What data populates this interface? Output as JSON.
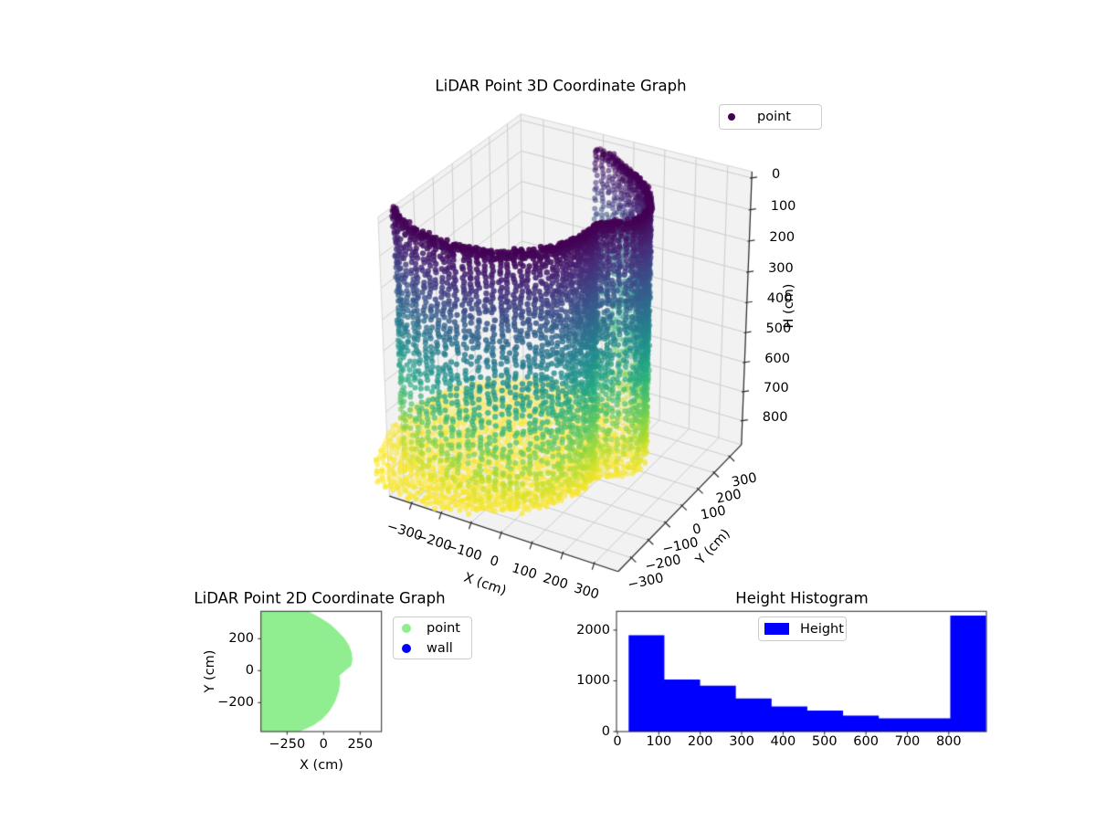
{
  "figure": {
    "background": "#ffffff"
  },
  "plot3d": {
    "title": "LiDAR Point 3D Coordinate Graph",
    "xlabel": "X (cm)",
    "ylabel": "Y (cm)",
    "zlabel": "H (cm)",
    "legend": [
      {
        "label": "point",
        "color": "#440154"
      }
    ]
  },
  "plot2d": {
    "title": "LiDAR Point 2D Coordinate Graph",
    "xlabel": "X (cm)",
    "ylabel": "Y (cm)",
    "legend": [
      {
        "label": "point",
        "color": "#90ee90"
      },
      {
        "label": "wall",
        "color": "#0000ff"
      }
    ]
  },
  "hist": {
    "title": "Height Histogram",
    "legend": [
      {
        "label": "Height",
        "color": "#0000ff"
      }
    ]
  },
  "chart_data": [
    {
      "type": "scatter3d",
      "title": "LiDAR Point 3D Coordinate Graph",
      "xlabel": "X (cm)",
      "ylabel": "Y (cm)",
      "zlabel": "H (cm)",
      "xlim": [
        -376,
        376
      ],
      "ylim": [
        -376,
        376
      ],
      "hlim_top": -20,
      "hlim_bottom": 884,
      "xticks": [
        -300,
        -200,
        -100,
        0,
        100,
        200,
        300
      ],
      "yticks": [
        -300,
        -200,
        -100,
        0,
        100,
        200,
        300
      ],
      "zticks": [
        0,
        100,
        200,
        300,
        400,
        500,
        600,
        700,
        800
      ],
      "legend": [
        {
          "label": "point",
          "color": "#440154"
        }
      ],
      "view": {
        "elev": 30,
        "azim": -60,
        "dist": 20,
        "zbox": 2.4
      },
      "colormap": "viridis",
      "cloud": {
        "scanner_origin": [
          0,
          0
        ],
        "wall_profile_deg_dist": [
          [
            -180,
            480
          ],
          [
            -150,
            480
          ],
          [
            -120,
            380
          ],
          [
            -95,
            300
          ],
          [
            -75,
            235
          ],
          [
            -55,
            175
          ],
          [
            -35,
            138
          ],
          [
            -16,
            112
          ],
          [
            0,
            148
          ],
          [
            9,
            191
          ],
          [
            20,
            210
          ],
          [
            32,
            223
          ],
          [
            44,
            236
          ],
          [
            56,
            248
          ],
          [
            68,
            265
          ],
          [
            82,
            293
          ],
          [
            92,
            326
          ],
          [
            105,
            385
          ],
          [
            125,
            440
          ],
          [
            150,
            470
          ],
          [
            180,
            480
          ]
        ],
        "floor_profile_deg_dist": [
          [
            -180,
            580
          ],
          [
            -140,
            575
          ],
          [
            -115,
            422
          ],
          [
            -102,
            350
          ],
          [
            -91,
            303
          ],
          [
            -80,
            254
          ],
          [
            -68,
            210
          ],
          [
            -52,
            167
          ],
          [
            -33,
            136
          ],
          [
            -16,
            112
          ],
          [
            0,
            148
          ],
          [
            9,
            191
          ],
          [
            19,
            210
          ],
          [
            31,
            223
          ],
          [
            43,
            236
          ],
          [
            55,
            248
          ],
          [
            68,
            265
          ],
          [
            81,
            293
          ],
          [
            92,
            326
          ],
          [
            105,
            385
          ],
          [
            125,
            480
          ],
          [
            150,
            560
          ],
          [
            180,
            580
          ]
        ],
        "wall_arc_deg": [
          -152,
          108
        ],
        "wall_h_range": [
          27,
          864
        ],
        "wall_h_step": 12.2,
        "wall_angle_step_deg": 3.2,
        "floor_h_range": [
          853,
          871
        ],
        "floor_grid_cm": 16.5,
        "rim_h_range": [
          27,
          55
        ]
      }
    },
    {
      "type": "scatter2d_filled",
      "title": "LiDAR Point 2D Coordinate Graph",
      "xlabel": "X (cm)",
      "ylabel": "Y (cm)",
      "xlim": [
        -429,
        396
      ],
      "ylim": [
        -383,
        370
      ],
      "xticks": [
        -250,
        0,
        250
      ],
      "yticks": [
        -200,
        0,
        200
      ],
      "legend": [
        {
          "label": "point",
          "color": "#90ee90"
        },
        {
          "label": "wall",
          "color": "#0000ff"
        }
      ],
      "point_region_polygon_cm": [
        [
          -429,
          370
        ],
        [
          -102,
          370
        ],
        [
          -14,
          326
        ],
        [
          48,
          289
        ],
        [
          98,
          246
        ],
        [
          142,
          203
        ],
        [
          173,
          160
        ],
        [
          192,
          114
        ],
        [
          198,
          69
        ],
        [
          189,
          31
        ],
        [
          148,
          0
        ],
        [
          108,
          -31
        ],
        [
          114,
          -74
        ],
        [
          104,
          -131
        ],
        [
          79,
          -194
        ],
        [
          42,
          -251
        ],
        [
          -8,
          -303
        ],
        [
          -71,
          -343
        ],
        [
          -152,
          -377
        ],
        [
          -177,
          -383
        ],
        [
          -429,
          -383
        ]
      ]
    },
    {
      "type": "bar",
      "title": "Height Histogram",
      "legend": [
        {
          "label": "Height",
          "color": "#0000ff"
        }
      ],
      "bin_start": 27.1,
      "bin_width": 86.28,
      "counts": [
        1897,
        1027,
        906,
        654,
        497,
        414,
        317,
        263,
        263,
        2288
      ],
      "xticks": [
        0,
        100,
        200,
        300,
        400,
        500,
        600,
        700,
        800
      ],
      "yticks": [
        0,
        1000,
        2000
      ],
      "xlim": [
        -2,
        890
      ],
      "ylim": [
        0,
        2373
      ]
    }
  ]
}
